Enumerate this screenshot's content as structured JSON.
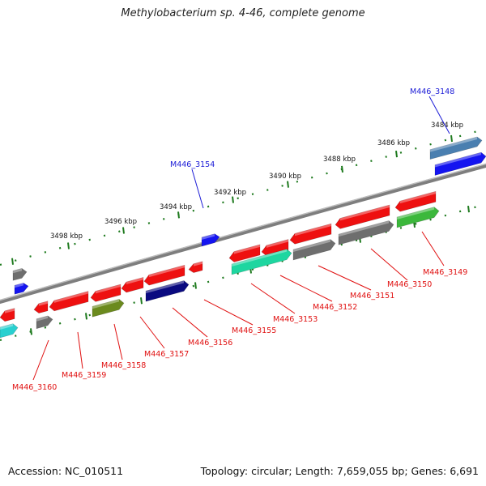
{
  "title": "Methylobacterium sp. 4-46, complete genome",
  "accession": "Accession: NC_010511",
  "topology": "Topology: circular; Length: 7,659,055 bp; Genes: 6,691",
  "colors": {
    "backbone": "#8c8c8c",
    "forward_label": "#1a1ad6",
    "reverse_label": "#e01010",
    "tick": "#1e7a1e"
  },
  "scale_labels": [
    "3484 kbp",
    "3486 kbp",
    "3488 kbp",
    "3490 kbp",
    "3492 kbp",
    "3494 kbp",
    "3496 kbp",
    "3498 kbp"
  ],
  "forward_gene_labels": [
    "M446_3148",
    "M446_3154"
  ],
  "reverse_gene_labels": [
    "M446_3149",
    "M446_3150",
    "M446_3151",
    "M446_3152",
    "M446_3153",
    "M446_3155",
    "M446_3156",
    "M446_3157",
    "M446_3158",
    "M446_3159",
    "M446_3160"
  ]
}
